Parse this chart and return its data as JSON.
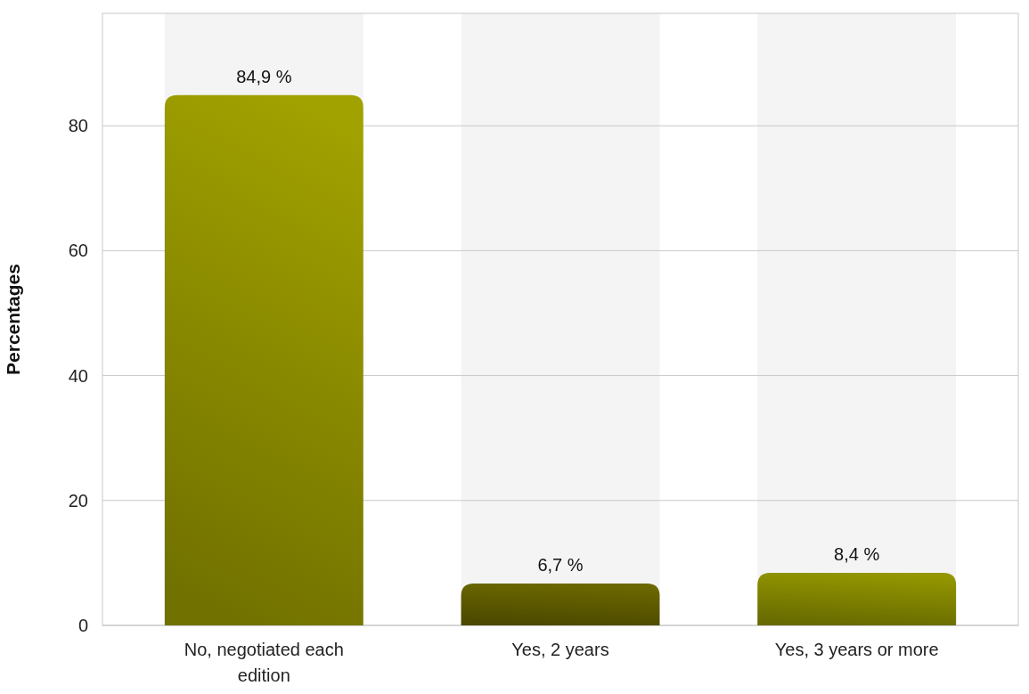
{
  "chart_data": {
    "type": "bar",
    "ylabel": "Percentages",
    "categories": [
      "No, negotiated each edition",
      "Yes, 2 years",
      "Yes, 3 years or more"
    ],
    "values": [
      84.9,
      6.7,
      8.4
    ],
    "colors": [
      "#8c8c00",
      "#5e5a00",
      "#808300"
    ],
    "value_labels": [
      "84,9 %",
      "6,7 %",
      "8,4 %"
    ],
    "ylim": [
      0,
      98
    ],
    "yticks": [
      0,
      20,
      40,
      60,
      80
    ],
    "grid": "y"
  }
}
